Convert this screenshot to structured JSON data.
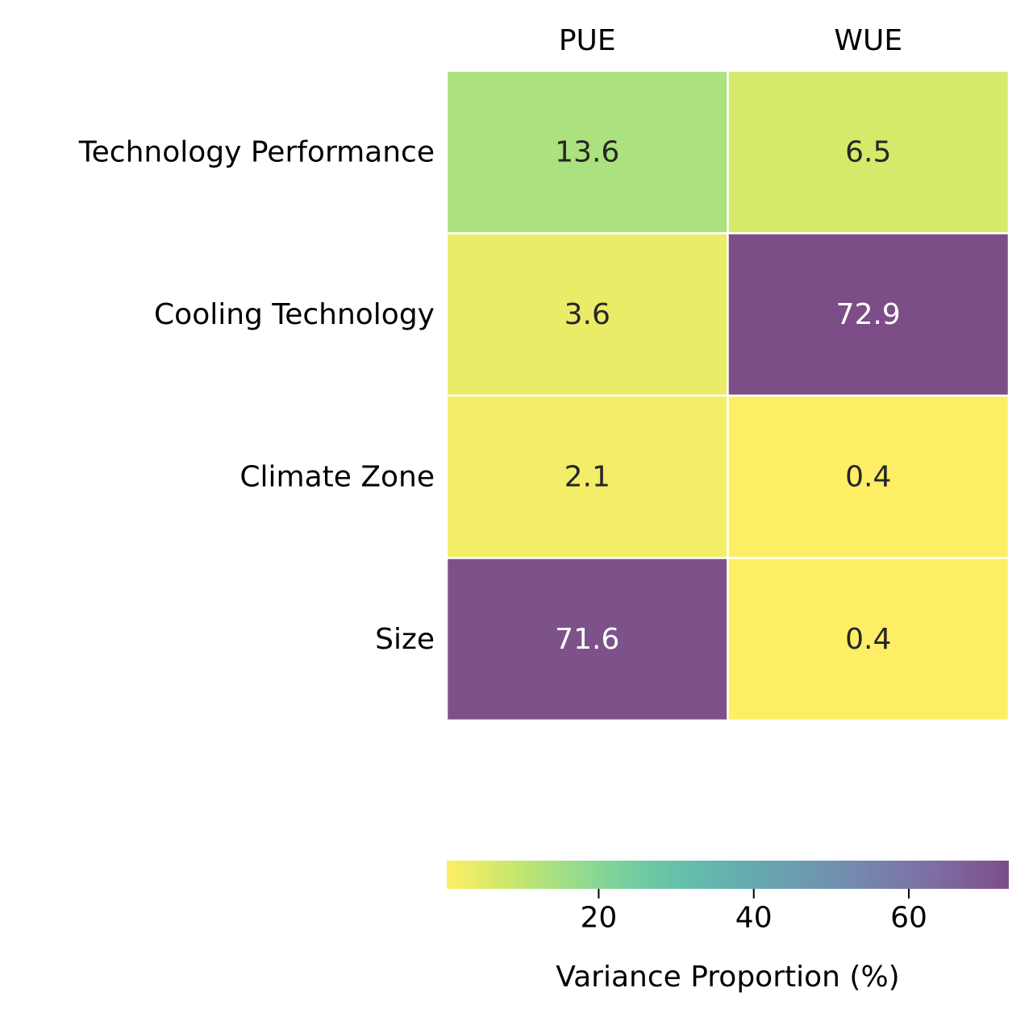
{
  "chart_data": {
    "type": "heatmap",
    "columns": [
      "PUE",
      "WUE"
    ],
    "rows": [
      "Technology Performance",
      "Cooling Technology",
      "Climate Zone",
      "Size"
    ],
    "values": [
      [
        13.6,
        6.5
      ],
      [
        3.6,
        72.9
      ],
      [
        2.1,
        0.4
      ],
      [
        71.6,
        0.4
      ]
    ],
    "value_labels": [
      [
        "13.6",
        "6.5"
      ],
      [
        "3.6",
        "72.9"
      ],
      [
        "2.1",
        "0.4"
      ],
      [
        "71.6",
        "0.4"
      ]
    ],
    "colorbar": {
      "label": "Variance Proportion (%)",
      "range": [
        0.4,
        72.9
      ],
      "ticks": [
        20,
        40,
        60
      ],
      "tick_labels": [
        "20",
        "40",
        "60"
      ],
      "colormap": "viridis_r",
      "orientation": "horizontal",
      "placement": "bottom"
    },
    "colors": {
      "stops": [
        "#fde725",
        "#b5de2b",
        "#6ece58",
        "#35b779",
        "#1f9e89",
        "#26828e",
        "#31688e",
        "#3e4989",
        "#482878",
        "#440154"
      ],
      "alpha": 0.7,
      "cell_border": "#ffffff",
      "light_text": "#ffffff",
      "dark_text": "#262626"
    }
  }
}
